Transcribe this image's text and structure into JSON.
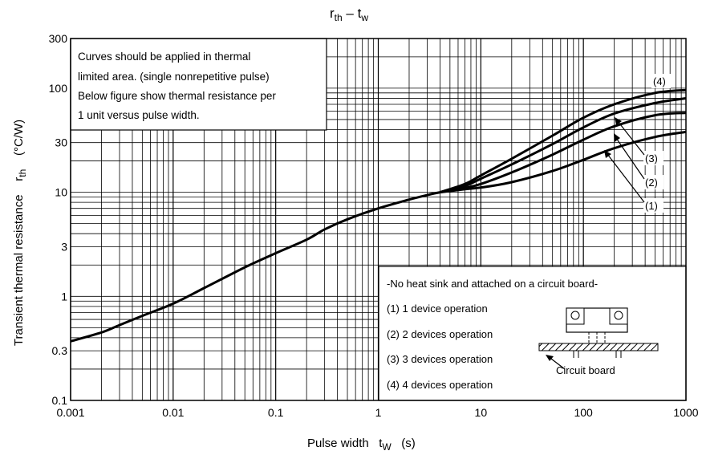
{
  "chart_data": {
    "type": "line",
    "title": {
      "main": "r",
      "main_sub": "th",
      "sep": " – ",
      "second": "t",
      "second_sub": "w"
    },
    "xlabel": {
      "text": "Pulse width",
      "symbol": "t",
      "symbol_sub": "W",
      "unit": "(s)"
    },
    "ylabel": {
      "text": "Transient thermal resistance",
      "symbol": "r",
      "symbol_sub": "th",
      "unit": "(°C/W)"
    },
    "x_scale": "log",
    "y_scale": "log",
    "xlim": [
      0.001,
      1000
    ],
    "ylim": [
      0.1,
      300
    ],
    "x_ticks": [
      {
        "value": 0.001,
        "label": "0.001"
      },
      {
        "value": 0.01,
        "label": "0.01"
      },
      {
        "value": 0.1,
        "label": "0.1"
      },
      {
        "value": 1,
        "label": "1"
      },
      {
        "value": 10,
        "label": "10"
      },
      {
        "value": 100,
        "label": "100"
      },
      {
        "value": 1000,
        "label": "1000"
      }
    ],
    "y_ticks": [
      {
        "value": 0.1,
        "label": "0.1"
      },
      {
        "value": 0.3,
        "label": "0.3"
      },
      {
        "value": 1,
        "label": "1"
      },
      {
        "value": 3,
        "label": "3"
      },
      {
        "value": 10,
        "label": "10"
      },
      {
        "value": 30,
        "label": "30"
      },
      {
        "value": 100,
        "label": "100"
      },
      {
        "value": 300,
        "label": "300"
      }
    ],
    "grid": true,
    "common_curve": {
      "x": [
        0.001,
        0.002,
        0.003,
        0.005,
        0.01,
        0.02,
        0.05,
        0.1,
        0.2,
        0.3,
        0.5,
        1,
        2,
        3,
        4
      ],
      "y": [
        0.37,
        0.45,
        0.53,
        0.65,
        0.85,
        1.2,
        1.9,
        2.6,
        3.5,
        4.4,
        5.5,
        7.0,
        8.5,
        9.4,
        10.0
      ]
    },
    "series": [
      {
        "name": "(1)",
        "x": [
          4,
          7,
          10,
          20,
          50,
          100,
          200,
          500,
          1000
        ],
        "y": [
          10.0,
          10.7,
          11.1,
          12.5,
          16.0,
          20.5,
          26.5,
          34.0,
          38.0
        ]
      },
      {
        "name": "(2)",
        "x": [
          4,
          7,
          10,
          20,
          50,
          100,
          200,
          500,
          1000
        ],
        "y": [
          10.0,
          11.0,
          12.0,
          15.5,
          23.0,
          32.0,
          43.0,
          55.0,
          58.0
        ]
      },
      {
        "name": "(3)",
        "x": [
          4,
          7,
          10,
          20,
          50,
          100,
          200,
          500,
          1000
        ],
        "y": [
          10.0,
          11.5,
          13.5,
          18.5,
          29.0,
          42.0,
          57.0,
          72.0,
          80.0
        ]
      },
      {
        "name": "(4)",
        "x": [
          4,
          7,
          10,
          20,
          50,
          100,
          200,
          500,
          1000
        ],
        "y": [
          10.0,
          12.0,
          14.5,
          21.0,
          35.0,
          52.0,
          70.0,
          90.0,
          96.0
        ]
      }
    ],
    "annotations": {
      "top_note": [
        "Curves should be applied in thermal",
        "limited area. (single nonrepetitive pulse)",
        "Below figure show thermal resistance per",
        "1 unit versus pulse width."
      ],
      "bottom_note": {
        "heading": "-No heat sink and attached on a circuit board-",
        "items": [
          "(1) 1 device operation",
          "(2) 2 devices operation",
          "(3) 3 devices operation",
          "(4) 4 devices operation"
        ],
        "board_label": "Circuit board"
      },
      "curve_labels": [
        "(1)",
        "(2)",
        "(3)",
        "(4)"
      ]
    }
  }
}
